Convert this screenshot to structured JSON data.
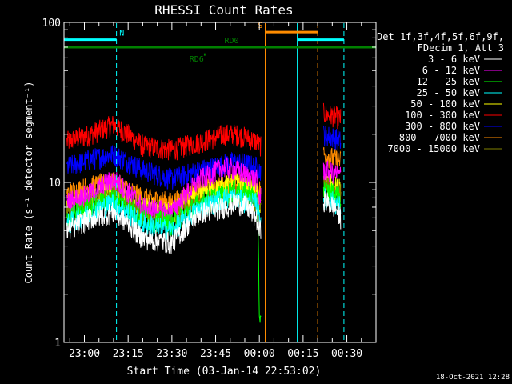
{
  "chart_data": {
    "type": "line",
    "title": "RHESSI Count Rates",
    "xlabel": "Start Time (03-Jan-14 22:53:02)",
    "ylabel": "Count Rate (s⁻¹ detector segment⁻¹)",
    "yscale": "log",
    "ylim": [
      1,
      100
    ],
    "xlim_minutes": [
      -7,
      100
    ],
    "x_ticks": [
      {
        "minute": 0,
        "label": "23:00"
      },
      {
        "minute": 15,
        "label": "23:15"
      },
      {
        "minute": 30,
        "label": "23:30"
      },
      {
        "minute": 45,
        "label": "23:45"
      },
      {
        "minute": 60,
        "label": "00:00"
      },
      {
        "minute": 75,
        "label": "00:15"
      },
      {
        "minute": 90,
        "label": "00:30"
      }
    ],
    "y_ticks": [
      {
        "value": 1,
        "label": "1"
      },
      {
        "value": 10,
        "label": "10"
      },
      {
        "value": 100,
        "label": "100"
      }
    ],
    "legend": {
      "header": [
        "Det 1f,3f,4f,5f,6f,9f,",
        "FDecim 1, Att 3"
      ],
      "placement": "right"
    },
    "series": [
      {
        "name": "3 - 6 keV",
        "color": "#ffffff",
        "x": [
          -6,
          2,
          10,
          20,
          30,
          40,
          48,
          52,
          56,
          59,
          60,
          82,
          86,
          88
        ],
        "values": [
          5,
          6,
          6.5,
          4.5,
          4.2,
          6.5,
          7,
          7.5,
          7,
          6,
          5,
          7.8,
          7,
          6
        ]
      },
      {
        "name": "6 - 12 keV",
        "color": "#ff00ff",
        "x": [
          -6,
          2,
          10,
          20,
          30,
          40,
          48,
          52,
          56,
          59,
          60,
          82,
          86,
          88
        ],
        "values": [
          7.5,
          8.5,
          10.5,
          7,
          6.5,
          10.5,
          12.5,
          12,
          11,
          10.5,
          8,
          12,
          11.5,
          11
        ]
      },
      {
        "name": "12 - 25 keV",
        "color": "#00ff00",
        "x": [
          -6,
          2,
          10,
          20,
          30,
          40,
          48,
          52,
          56,
          59,
          60,
          82,
          86,
          88
        ],
        "values": [
          6,
          7,
          8,
          6,
          5.5,
          7.5,
          8.5,
          9,
          8.5,
          8,
          1.4,
          9,
          8.5,
          8
        ]
      },
      {
        "name": "25 - 50 keV",
        "color": "#00ffff",
        "x": [
          -6,
          2,
          10,
          20,
          30,
          40,
          48,
          52,
          56,
          59,
          60,
          82,
          86,
          88
        ],
        "values": [
          5.5,
          6.5,
          7.5,
          5.5,
          5,
          7,
          8,
          8,
          7.5,
          7.5,
          6,
          8,
          7.5,
          7
        ]
      },
      {
        "name": "50 - 100 keV",
        "color": "#ffff00",
        "x": [
          -6,
          2,
          10,
          20,
          30,
          40,
          48,
          52,
          56,
          59,
          60,
          82,
          86,
          88
        ],
        "values": [
          7,
          8,
          9,
          7,
          6.5,
          8.5,
          9.5,
          10,
          9.5,
          9,
          7,
          10,
          9.5,
          9
        ]
      },
      {
        "name": "100 - 300 keV",
        "color": "#ff0000",
        "x": [
          -6,
          2,
          10,
          20,
          30,
          40,
          48,
          52,
          56,
          59,
          60,
          82,
          86,
          88
        ],
        "values": [
          18,
          20,
          23,
          17,
          16,
          18,
          20,
          20,
          19,
          18,
          17,
          27,
          26,
          25
        ]
      },
      {
        "name": "300 - 800 keV",
        "color": "#0000ff",
        "x": [
          -6,
          2,
          10,
          20,
          30,
          40,
          48,
          52,
          56,
          59,
          60,
          82,
          86,
          88
        ],
        "values": [
          12.5,
          14,
          15,
          12,
          10.5,
          12,
          13,
          13.5,
          13,
          12.5,
          12,
          20,
          19,
          18
        ]
      },
      {
        "name": "800 - 7000 keV",
        "color": "#ff8c00",
        "x": [
          -6,
          2,
          10,
          20,
          30,
          40,
          48,
          52,
          56,
          59,
          60,
          82,
          86,
          88
        ],
        "values": [
          8.5,
          9.5,
          10,
          8,
          7.5,
          9,
          9.5,
          9.8,
          9.5,
          9.3,
          9,
          15,
          14,
          13.5
        ]
      },
      {
        "name": "7000 - 15000 keV",
        "color": "#808000",
        "x": [
          -6,
          2,
          10,
          20,
          30,
          40,
          48,
          52,
          56,
          59,
          60,
          82,
          86,
          88
        ],
        "values": [
          6.5,
          7.5,
          8.5,
          6.5,
          6,
          7.5,
          8,
          8.5,
          8,
          7.5,
          7,
          9.5,
          9,
          8.5
        ]
      }
    ],
    "flags": [
      {
        "label": "N",
        "color": "#00ffff",
        "value": 78,
        "x_start": -7,
        "x_end": 11,
        "label_minute": 12
      },
      {
        "label": "N",
        "color": "#00ffff",
        "value": 78,
        "x_start": 73,
        "x_end": 89,
        "label_minute": null
      },
      {
        "label": "S",
        "color": "#ff8c00",
        "value": 87,
        "x_start": 62,
        "x_end": 80,
        "label_minute": 59.5
      },
      {
        "label": "RD0",
        "color": "#008000",
        "value": 70,
        "x_start": -7,
        "x_end": 100,
        "label_minute": 48
      },
      {
        "label": "RD6",
        "color": "#008000",
        "value": 63,
        "x_start": 41,
        "x_end": 41.5,
        "label_minute": 36
      }
    ],
    "vertical_markers": [
      {
        "minute": -7,
        "color": "#00ffff",
        "style": "solid"
      },
      {
        "minute": 11,
        "color": "#00ffff",
        "style": "dashed"
      },
      {
        "minute": 62,
        "color": "#ff8c00",
        "style": "solid"
      },
      {
        "minute": 73,
        "color": "#00ffff",
        "style": "solid"
      },
      {
        "minute": 80,
        "color": "#ff8c00",
        "style": "dashed"
      },
      {
        "minute": 89,
        "color": "#00ffff",
        "style": "dashed"
      }
    ],
    "data_gap_minutes": [
      60.5,
      80.5
    ]
  },
  "footer": {
    "timestamp": "18-Oct-2021 12:28"
  }
}
